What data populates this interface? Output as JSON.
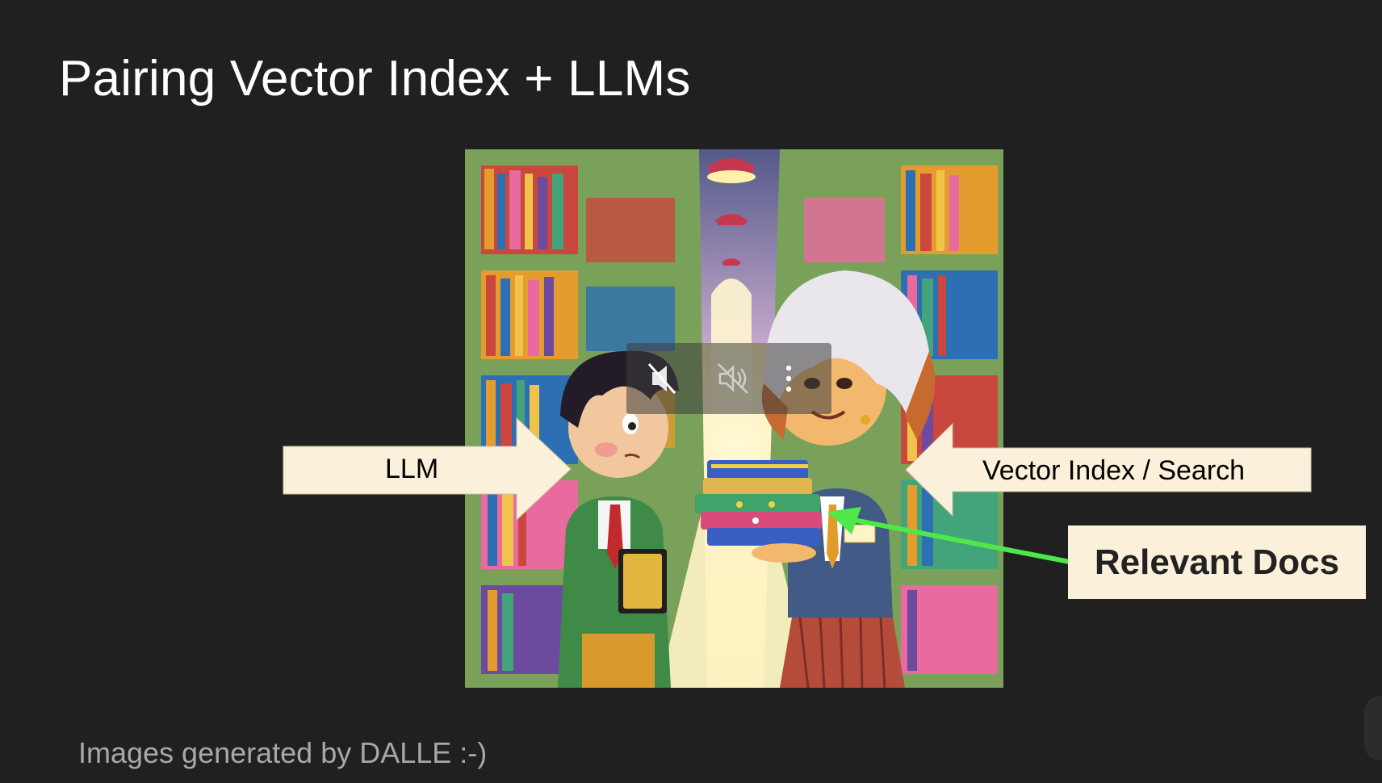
{
  "slide": {
    "title": "Pairing Vector Index + LLMs",
    "caption": "Images generated by DALLE :-)"
  },
  "callouts": {
    "llm": "LLM",
    "vector_index": "Vector Index / Search",
    "relevant_docs": "Relevant Docs"
  },
  "overlay": {
    "mute_icon": "muted-speaker-icon",
    "audio_off_icon": "audio-off-icon",
    "menu_icon": "more-vert-icon"
  },
  "colors": {
    "background": "#202020",
    "callout_fill": "#fbf0d9",
    "arrow_green": "#4ee84a",
    "title_text": "#ffffff",
    "caption_text": "#a8a8a8"
  }
}
